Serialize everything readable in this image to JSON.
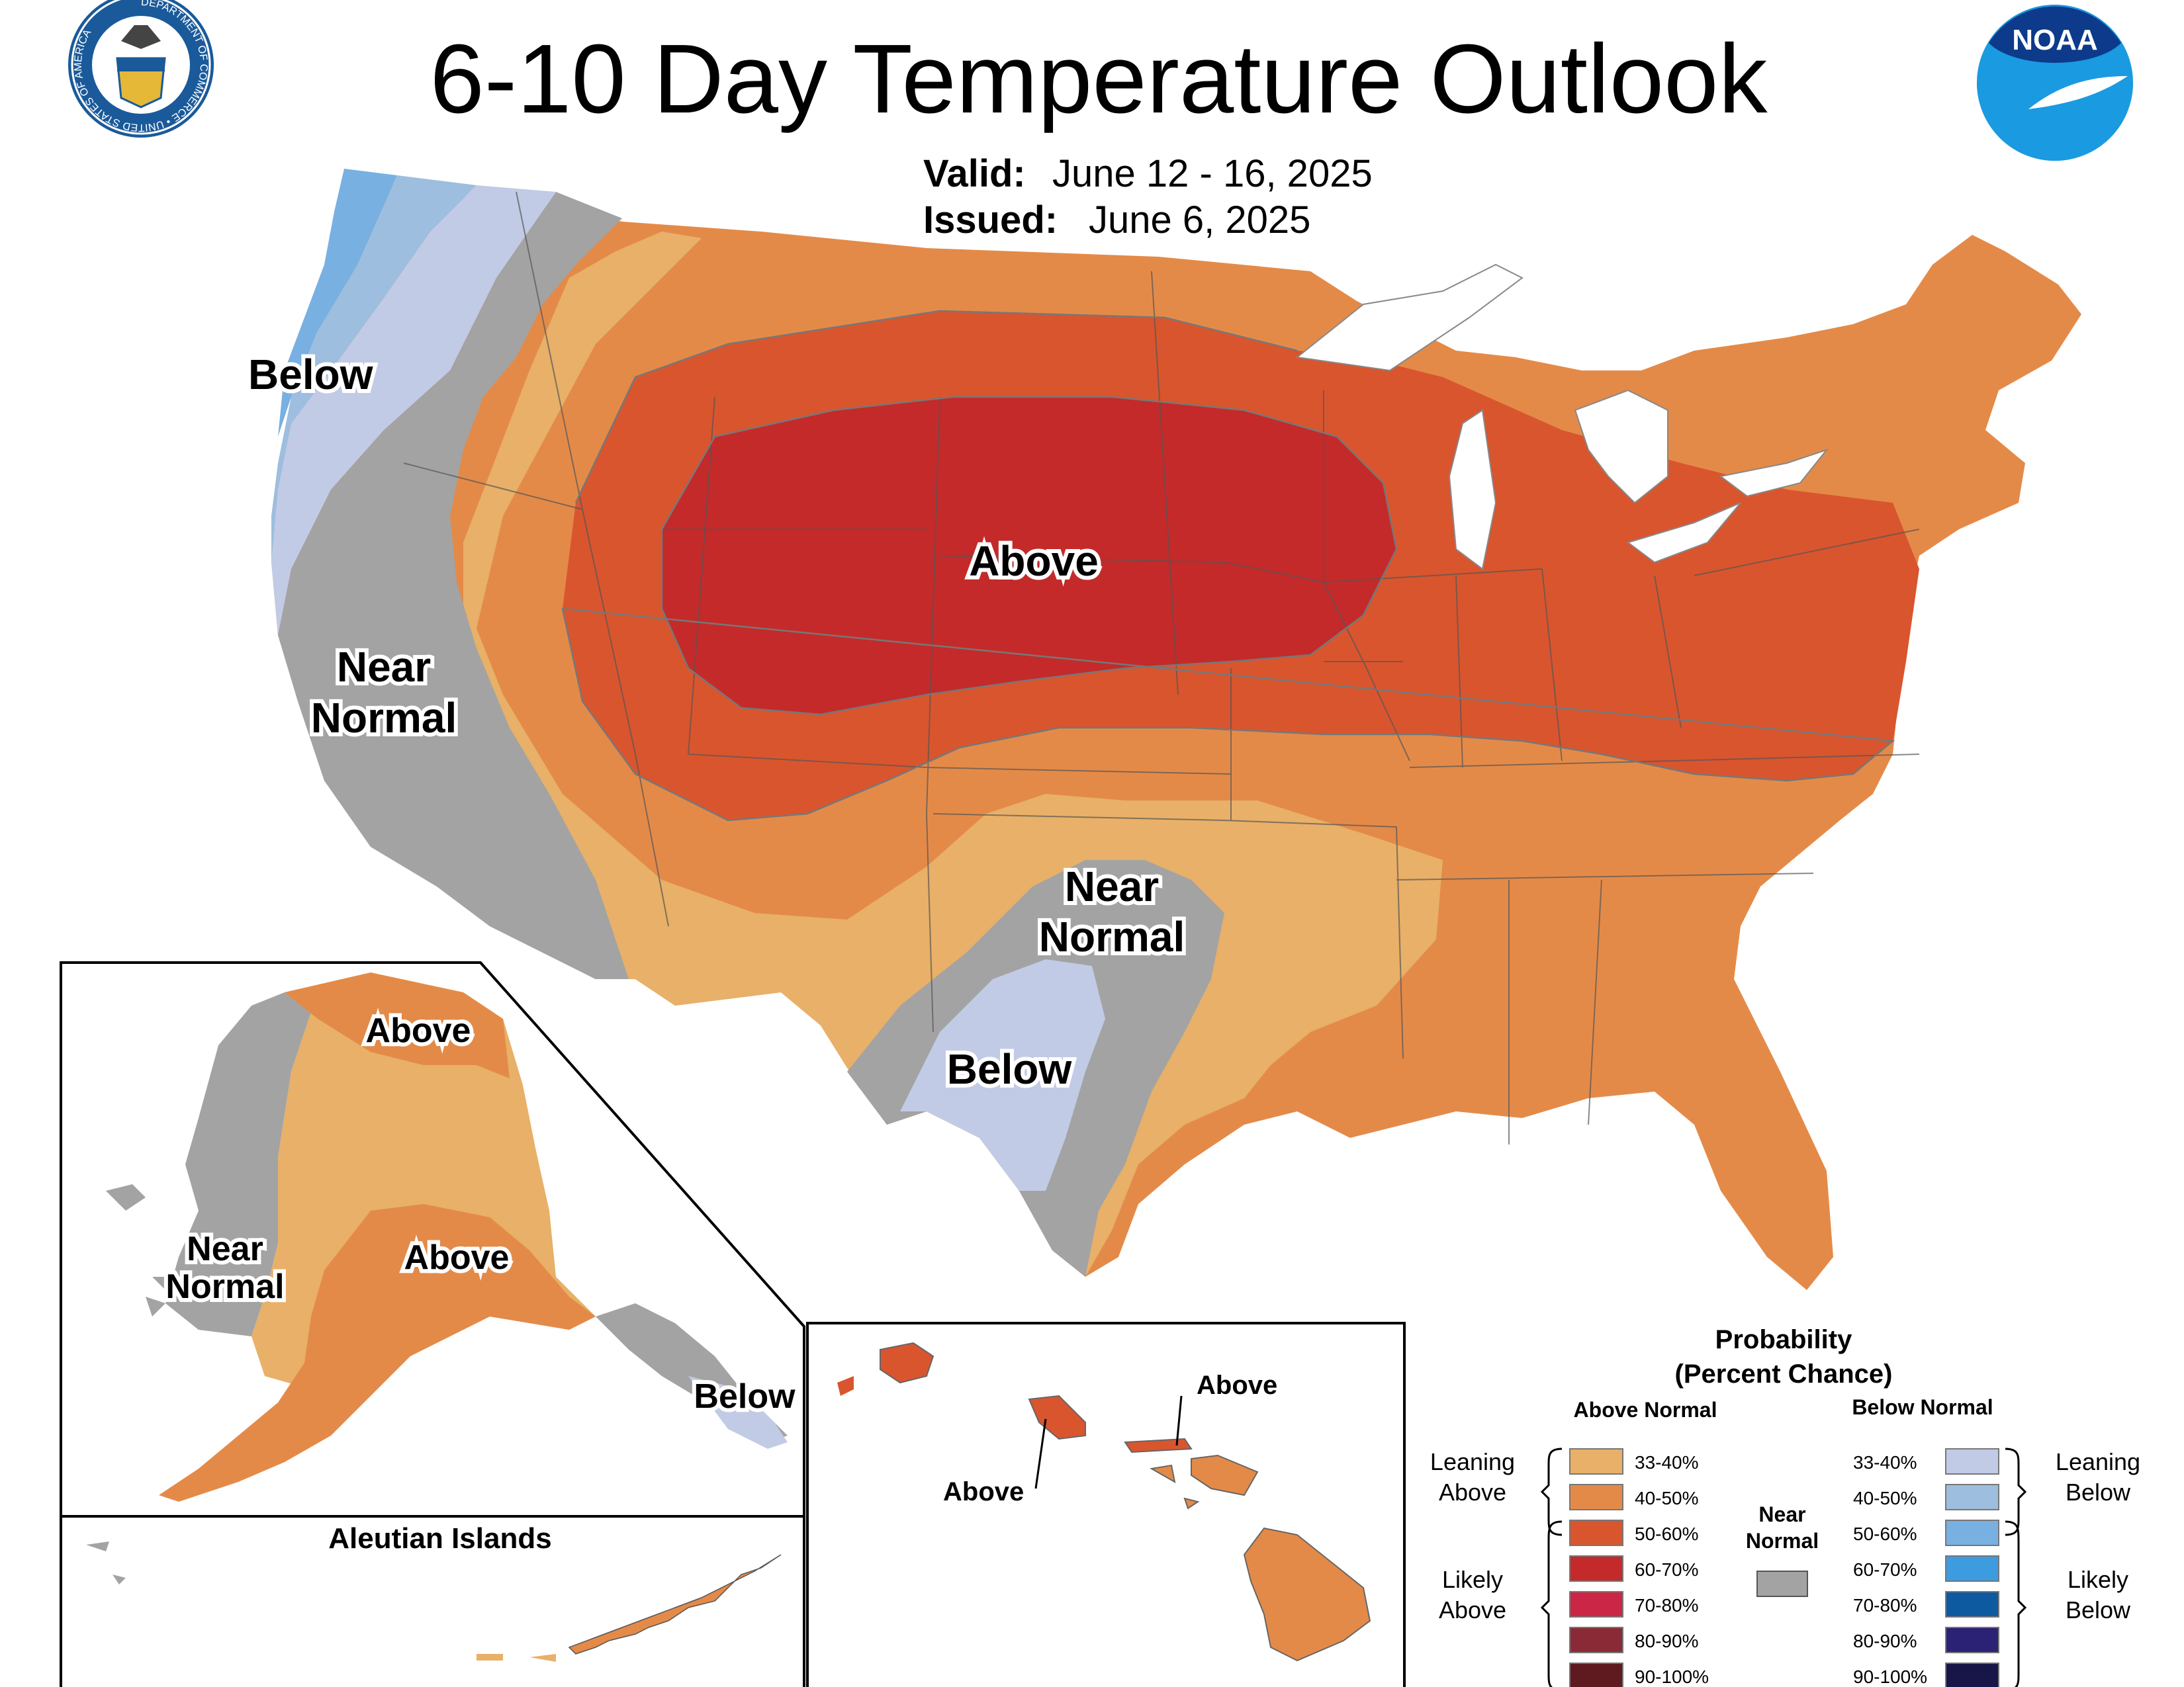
{
  "header": {
    "title": "6-10 Day Temperature Outlook",
    "valid_label": "Valid:",
    "valid_value": "June 12 - 16, 2025",
    "issued_label": "Issued:",
    "issued_value": "June 6, 2025"
  },
  "logos": {
    "commerce_ring": "DEPARTMENT OF COMMERCE • UNITED STATES OF AMERICA",
    "noaa": "NOAA"
  },
  "conus_labels": {
    "below_nw": "Below",
    "near_west_1": "Near",
    "near_west_2": "Normal",
    "above_center": "Above",
    "near_sw_1": "Near",
    "near_sw_2": "Normal",
    "below_tx": "Below"
  },
  "alaska": {
    "above_north": "Above",
    "above_south": "Above",
    "near_1": "Near",
    "near_2": "Normal",
    "below_panhandle": "Below",
    "aleutians_title": "Aleutian Islands"
  },
  "hawaii": {
    "above_right": "Above",
    "above_left": "Above"
  },
  "legend": {
    "title_1": "Probability",
    "title_2": "(Percent Chance)",
    "above_header": "Above Normal",
    "below_header": "Below Normal",
    "near_1": "Near",
    "near_2": "Normal",
    "leaning_above_1": "Leaning",
    "leaning_above_2": "Above",
    "likely_above_1": "Likely",
    "likely_above_2": "Above",
    "leaning_below_1": "Leaning",
    "leaning_below_2": "Below",
    "likely_below_1": "Likely",
    "likely_below_2": "Below",
    "above_ranges": [
      "33-40%",
      "40-50%",
      "50-60%",
      "60-70%",
      "70-80%",
      "80-90%",
      "90-100%"
    ],
    "below_ranges": [
      "33-40%",
      "40-50%",
      "50-60%",
      "60-70%",
      "70-80%",
      "80-90%",
      "90-100%"
    ],
    "above_colors": [
      "#e8b068",
      "#e48a48",
      "#d9552e",
      "#c42a2a",
      "#cc2646",
      "#8a2a36",
      "#5e1a1e"
    ],
    "below_colors": [
      "#c1cbe6",
      "#9dbede",
      "#78b0e2",
      "#3d9ce0",
      "#0e5aa0",
      "#2c2275",
      "#181549"
    ],
    "near_color": "#a3a3a3"
  }
}
